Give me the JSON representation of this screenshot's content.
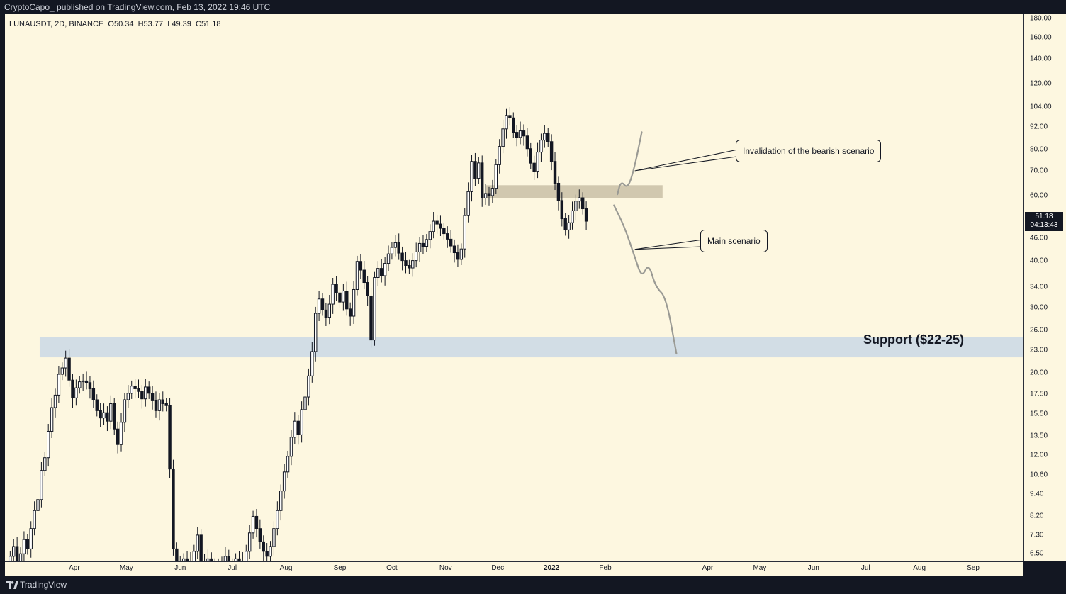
{
  "header": {
    "published_text": "CryptoCapo_ published on TradingView.com, Feb 13, 2022 19:46 UTC"
  },
  "symbol_bar": {
    "symbol": "LUNAUSDT, 2D, BINANCE",
    "open": "O50.34",
    "high": "H53.77",
    "low": "L49.39",
    "close": "C51.18"
  },
  "footer": {
    "brand": "TradingView",
    "logo_icon": "tradingview-logo-icon"
  },
  "colors": {
    "background": "#fdf7e0",
    "candle": "#131722",
    "support_zone": "#cdd9e5",
    "resistance_zone": "#c9bfa6",
    "projection": "#9a9a94",
    "frame": "#131722"
  },
  "annotations": {
    "invalidation_label": "Invalidation of the bearish scenario",
    "main_label": "Main scenario",
    "support_label": "Support ($22-25)"
  },
  "price_axis": {
    "ticks": [
      "180.00",
      "160.00",
      "140.00",
      "120.00",
      "104.00",
      "92.00",
      "80.00",
      "70.00",
      "60.00",
      "46.00",
      "40.00",
      "34.00",
      "30.00",
      "26.00",
      "23.00",
      "20.00",
      "17.50",
      "15.50",
      "13.50",
      "12.00",
      "10.60",
      "9.40",
      "8.20",
      "7.30",
      "6.50"
    ],
    "last_price": "51.18",
    "countdown": "04:13:43"
  },
  "time_axis": {
    "labels": [
      "Apr",
      "May",
      "Jun",
      "Jul",
      "Aug",
      "Sep",
      "Oct",
      "Nov",
      "Dec",
      "2022",
      "Feb",
      "Apr",
      "May",
      "Jun",
      "Jul",
      "Aug",
      "Sep"
    ]
  },
  "chart_data": {
    "type": "candlestick",
    "symbol": "LUNAUSDT",
    "interval": "2D",
    "exchange": "BINANCE",
    "y_scale": "log",
    "ylim": [
      6.2,
      185
    ],
    "x_range": [
      "2021-02-20",
      "2022-09-30"
    ],
    "candles_approx": {
      "start": "2021-02-22",
      "step_days": 2,
      "closes": [
        6.4,
        6.8,
        6.2,
        6.5,
        7.1,
        6.7,
        7.6,
        8.5,
        9.1,
        10.9,
        11.8,
        13.9,
        16.1,
        17.4,
        19.8,
        20.6,
        21.9,
        19.1,
        17.1,
        18.2,
        18.9,
        19.0,
        18.8,
        18.1,
        16.9,
        15.8,
        15.1,
        15.6,
        14.8,
        16.5,
        14.1,
        12.8,
        14.7,
        16.9,
        17.6,
        18.4,
        18.1,
        17.8,
        17.0,
        18.3,
        17.6,
        16.8,
        15.8,
        16.9,
        16.5,
        16.3,
        11.0,
        6.7,
        6.1,
        5.9,
        6.3,
        6.2,
        5.8,
        6.6,
        7.3,
        6.2,
        5.8,
        6.3,
        6.0,
        5.8,
        6.1,
        5.9,
        6.4,
        5.8,
        6.0,
        6.3,
        5.9,
        6.2,
        6.6,
        7.4,
        8.2,
        7.6,
        7.0,
        6.6,
        6.4,
        6.8,
        7.6,
        8.5,
        9.6,
        10.8,
        11.9,
        13.4,
        14.8,
        13.6,
        15.9,
        17.2,
        19.6,
        22.8,
        28.9,
        31.6,
        29.5,
        28.2,
        30.6,
        34.6,
        32.8,
        31.0,
        33.2,
        29.7,
        28.4,
        33.5,
        39.9,
        37.8,
        35.0,
        32.2,
        24.5,
        36.1,
        38.2,
        36.5,
        39.4,
        41.8,
        43.5,
        44.8,
        42.0,
        40.1,
        38.9,
        38.3,
        40.1,
        42.3,
        44.6,
        43.8,
        45.7,
        48.0,
        51.2,
        50.3,
        49.0,
        47.4,
        45.8,
        43.9,
        42.1,
        40.4,
        43.1,
        53.0,
        61.5,
        74.2,
        66.8,
        73.5,
        59.1,
        60.8,
        60.0,
        62.8,
        72.7,
        81.4,
        90.8,
        98.7,
        97.2,
        88.9,
        86.1,
        89.7,
        86.9,
        80.3,
        73.4,
        69.8,
        78.6,
        84.7,
        88.3,
        83.9,
        74.2,
        64.8,
        58.2,
        52.0,
        48.5,
        50.7,
        54.6,
        58.0,
        59.2,
        55.3,
        51.2
      ],
      "note_order": "closes listed chronologically, 2-day candles"
    },
    "zones": [
      {
        "name": "Support ($22-25)",
        "low": 22.0,
        "high": 25.0,
        "from": "2021-03-12",
        "to": "2022-09-30"
      },
      {
        "low": 59.0,
        "high": 64.0,
        "from": "2021-11-24",
        "to": "2022-03-06"
      }
    ],
    "projections": [
      {
        "label": "Invalidation of the bearish scenario",
        "points": [
          [
            "2022-02-08",
            60.5
          ],
          [
            "2022-02-10",
            65.8
          ],
          [
            "2022-02-14",
            62.5
          ],
          [
            "2022-02-18",
            72.0
          ],
          [
            "2022-02-22",
            89.0
          ]
        ]
      },
      {
        "label": "Main scenario",
        "points": [
          [
            "2022-02-06",
            56.5
          ],
          [
            "2022-02-12",
            49.5
          ],
          [
            "2022-02-18",
            41.0
          ],
          [
            "2022-02-22",
            36.0
          ],
          [
            "2022-02-26",
            39.5
          ],
          [
            "2022-03-02",
            34.0
          ],
          [
            "2022-03-08",
            32.0
          ],
          [
            "2022-03-14",
            22.5
          ]
        ]
      }
    ]
  }
}
